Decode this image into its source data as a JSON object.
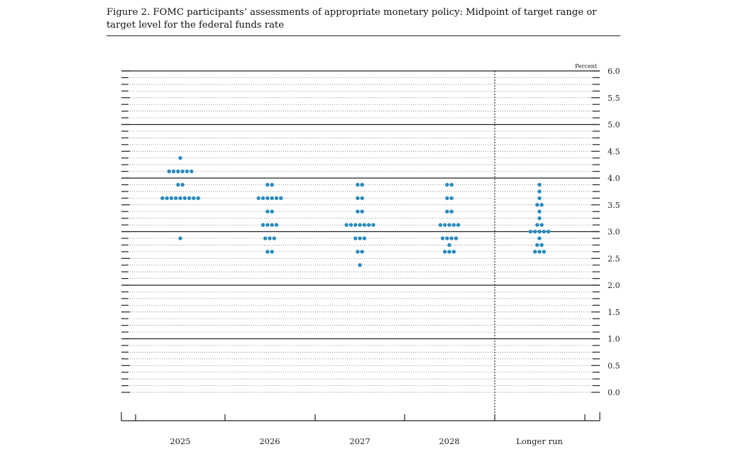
{
  "figure": {
    "title": "Figure 2. FOMC participants’ assessments of appropriate monetary policy: Midpoint of target range or target level for the federal funds rate"
  },
  "chart_data": {
    "type": "scatter",
    "subtype": "dot-plot",
    "ylabel": "Percent",
    "ylim": [
      0.0,
      6.0
    ],
    "yticks": [
      "0.0",
      "0.5",
      "1.0",
      "1.5",
      "2.0",
      "2.5",
      "3.0",
      "3.5",
      "4.0",
      "4.5",
      "5.0",
      "5.5",
      "6.0"
    ],
    "categories": [
      "2025",
      "2026",
      "2027",
      "2028",
      "Longer run"
    ],
    "dot_color": "#2a8bbd",
    "grid": true,
    "separator_before": "Longer run",
    "columns": [
      {
        "category": "2025",
        "dots": [
          {
            "value": 4.375,
            "count": 1
          },
          {
            "value": 4.125,
            "count": 6
          },
          {
            "value": 3.875,
            "count": 2
          },
          {
            "value": 3.625,
            "count": 9
          },
          {
            "value": 2.875,
            "count": 1
          }
        ]
      },
      {
        "category": "2026",
        "dots": [
          {
            "value": 3.875,
            "count": 2
          },
          {
            "value": 3.625,
            "count": 6
          },
          {
            "value": 3.375,
            "count": 2
          },
          {
            "value": 3.125,
            "count": 4
          },
          {
            "value": 2.875,
            "count": 3
          },
          {
            "value": 2.625,
            "count": 2
          }
        ]
      },
      {
        "category": "2027",
        "dots": [
          {
            "value": 3.875,
            "count": 2
          },
          {
            "value": 3.625,
            "count": 2
          },
          {
            "value": 3.375,
            "count": 2
          },
          {
            "value": 3.125,
            "count": 7
          },
          {
            "value": 2.875,
            "count": 3
          },
          {
            "value": 2.625,
            "count": 2
          },
          {
            "value": 2.375,
            "count": 1
          }
        ]
      },
      {
        "category": "2028",
        "dots": [
          {
            "value": 3.875,
            "count": 2
          },
          {
            "value": 3.625,
            "count": 2
          },
          {
            "value": 3.375,
            "count": 2
          },
          {
            "value": 3.125,
            "count": 5
          },
          {
            "value": 2.875,
            "count": 4
          },
          {
            "value": 2.75,
            "count": 1
          },
          {
            "value": 2.625,
            "count": 3
          }
        ]
      },
      {
        "category": "Longer run",
        "dots": [
          {
            "value": 3.875,
            "count": 1
          },
          {
            "value": 3.75,
            "count": 1
          },
          {
            "value": 3.625,
            "count": 1
          },
          {
            "value": 3.5,
            "count": 2
          },
          {
            "value": 3.375,
            "count": 1
          },
          {
            "value": 3.25,
            "count": 1
          },
          {
            "value": 3.125,
            "count": 2
          },
          {
            "value": 3.0,
            "count": 5
          },
          {
            "value": 2.875,
            "count": 1
          },
          {
            "value": 2.75,
            "count": 2
          },
          {
            "value": 2.625,
            "count": 3
          }
        ]
      }
    ]
  }
}
